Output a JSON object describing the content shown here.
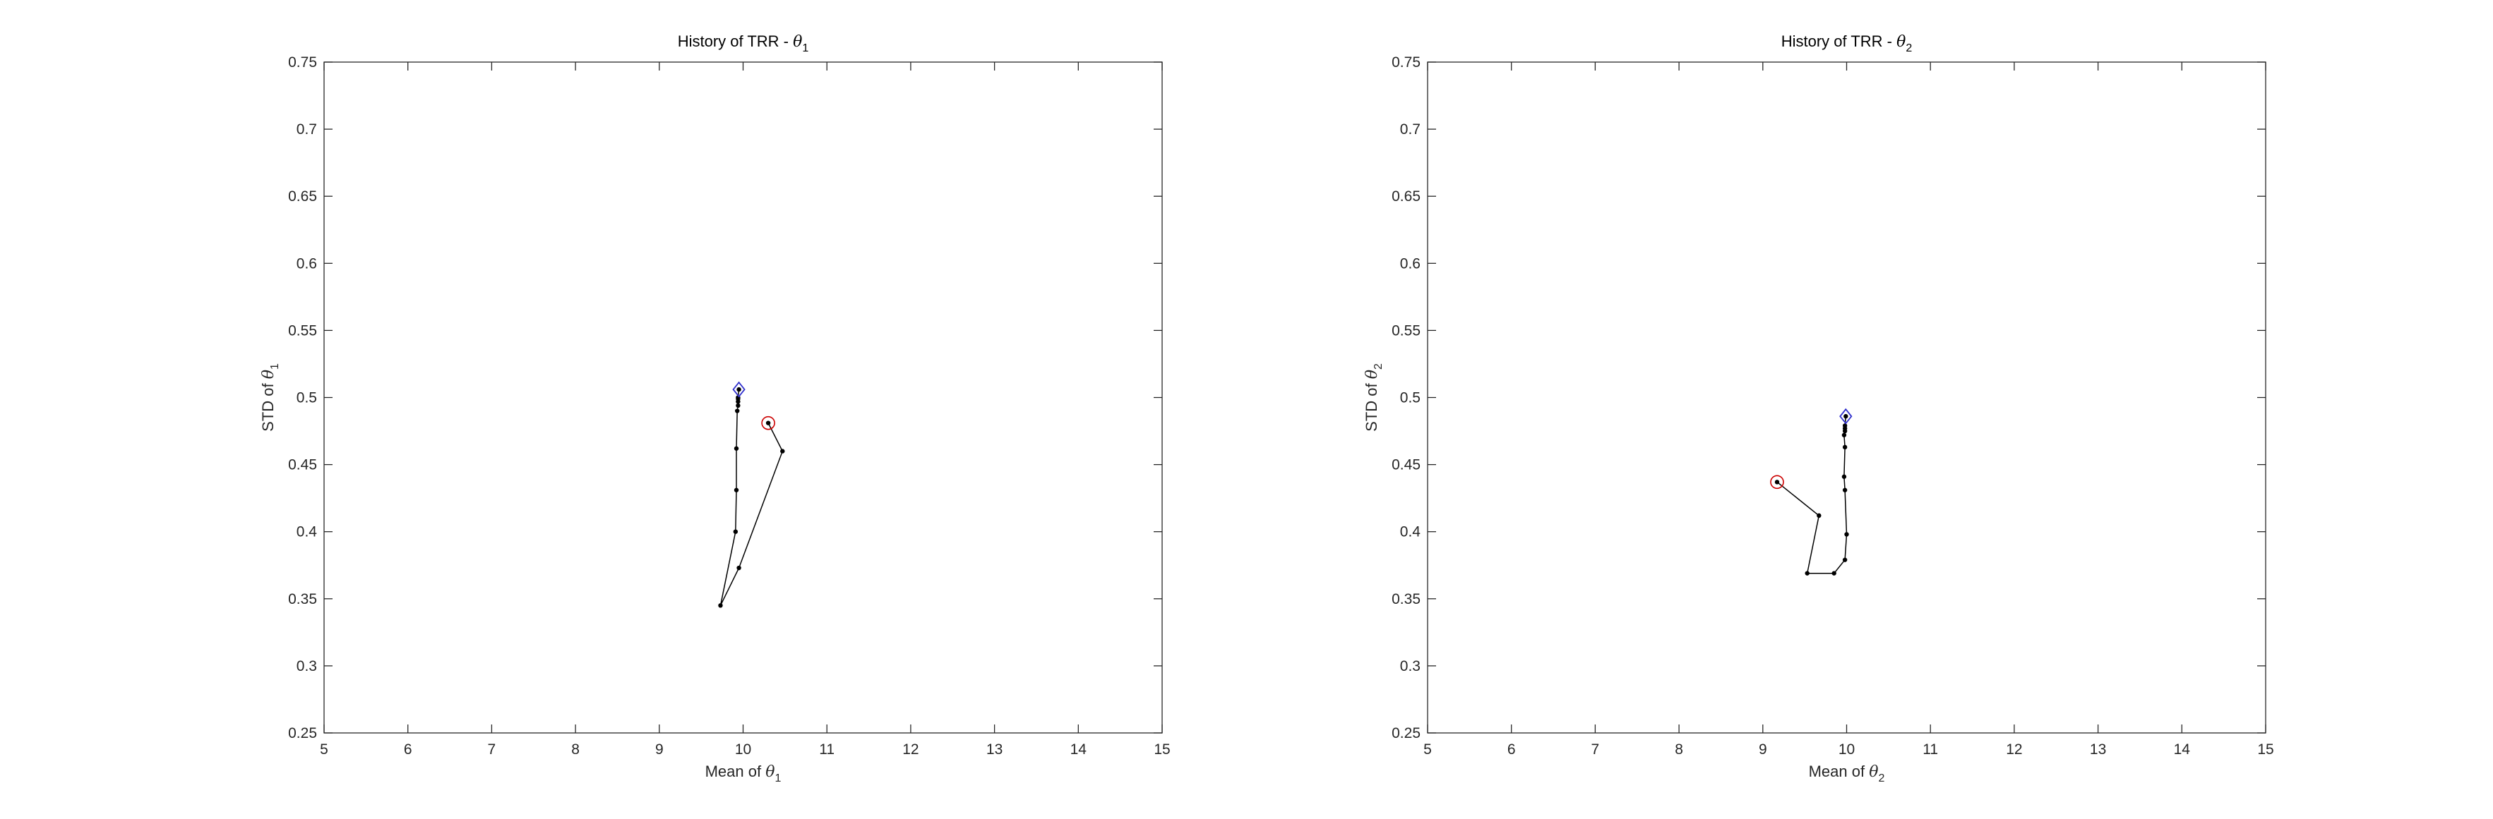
{
  "chart_data": [
    {
      "type": "line",
      "title": "History of TRR - θ",
      "title_sub": "1",
      "xlabel": "Mean of θ",
      "xlabel_sub": "1",
      "ylabel": "STD of θ",
      "ylabel_sub": "1",
      "xlim": [
        5,
        15
      ],
      "ylim": [
        0.25,
        0.75
      ],
      "xticks": [
        "5",
        "6",
        "7",
        "8",
        "9",
        "10",
        "11",
        "12",
        "13",
        "14",
        "15"
      ],
      "yticks": [
        "0.25",
        "0.3",
        "0.35",
        "0.4",
        "0.45",
        "0.5",
        "0.55",
        "0.6",
        "0.65",
        "0.7",
        "0.75"
      ],
      "grid": false,
      "series": [
        {
          "x": [
            10.3,
            10.47,
            9.95,
            9.73,
            9.91,
            9.92,
            9.92,
            9.93,
            9.94,
            9.94,
            9.94,
            9.94,
            9.95
          ],
          "y": [
            0.481,
            0.46,
            0.373,
            0.345,
            0.4,
            0.431,
            0.462,
            0.49,
            0.494,
            0.497,
            0.499,
            0.5,
            0.506
          ]
        }
      ],
      "start_marker": "circle",
      "end_marker": "diamond",
      "start_color": "#cc0000",
      "end_color": "#3030cc",
      "line_color": "#000000"
    },
    {
      "type": "line",
      "title": "History of TRR - θ",
      "title_sub": "2",
      "xlabel": "Mean of θ",
      "xlabel_sub": "2",
      "ylabel": "STD of θ",
      "ylabel_sub": "2",
      "xlim": [
        5,
        15
      ],
      "ylim": [
        0.25,
        0.75
      ],
      "xticks": [
        "5",
        "6",
        "7",
        "8",
        "9",
        "10",
        "11",
        "12",
        "13",
        "14",
        "15"
      ],
      "yticks": [
        "0.25",
        "0.3",
        "0.35",
        "0.4",
        "0.45",
        "0.5",
        "0.55",
        "0.6",
        "0.65",
        "0.7",
        "0.75"
      ],
      "grid": false,
      "series": [
        {
          "x": [
            9.17,
            9.67,
            9.53,
            9.85,
            9.98,
            10.0,
            9.98,
            9.97,
            9.98,
            9.97,
            9.98,
            9.98,
            9.98,
            9.99
          ],
          "y": [
            0.437,
            0.412,
            0.369,
            0.369,
            0.379,
            0.398,
            0.431,
            0.441,
            0.463,
            0.472,
            0.475,
            0.477,
            0.479,
            0.486
          ]
        }
      ],
      "start_marker": "circle",
      "end_marker": "diamond",
      "start_color": "#cc0000",
      "end_color": "#3030cc",
      "line_color": "#000000"
    }
  ]
}
